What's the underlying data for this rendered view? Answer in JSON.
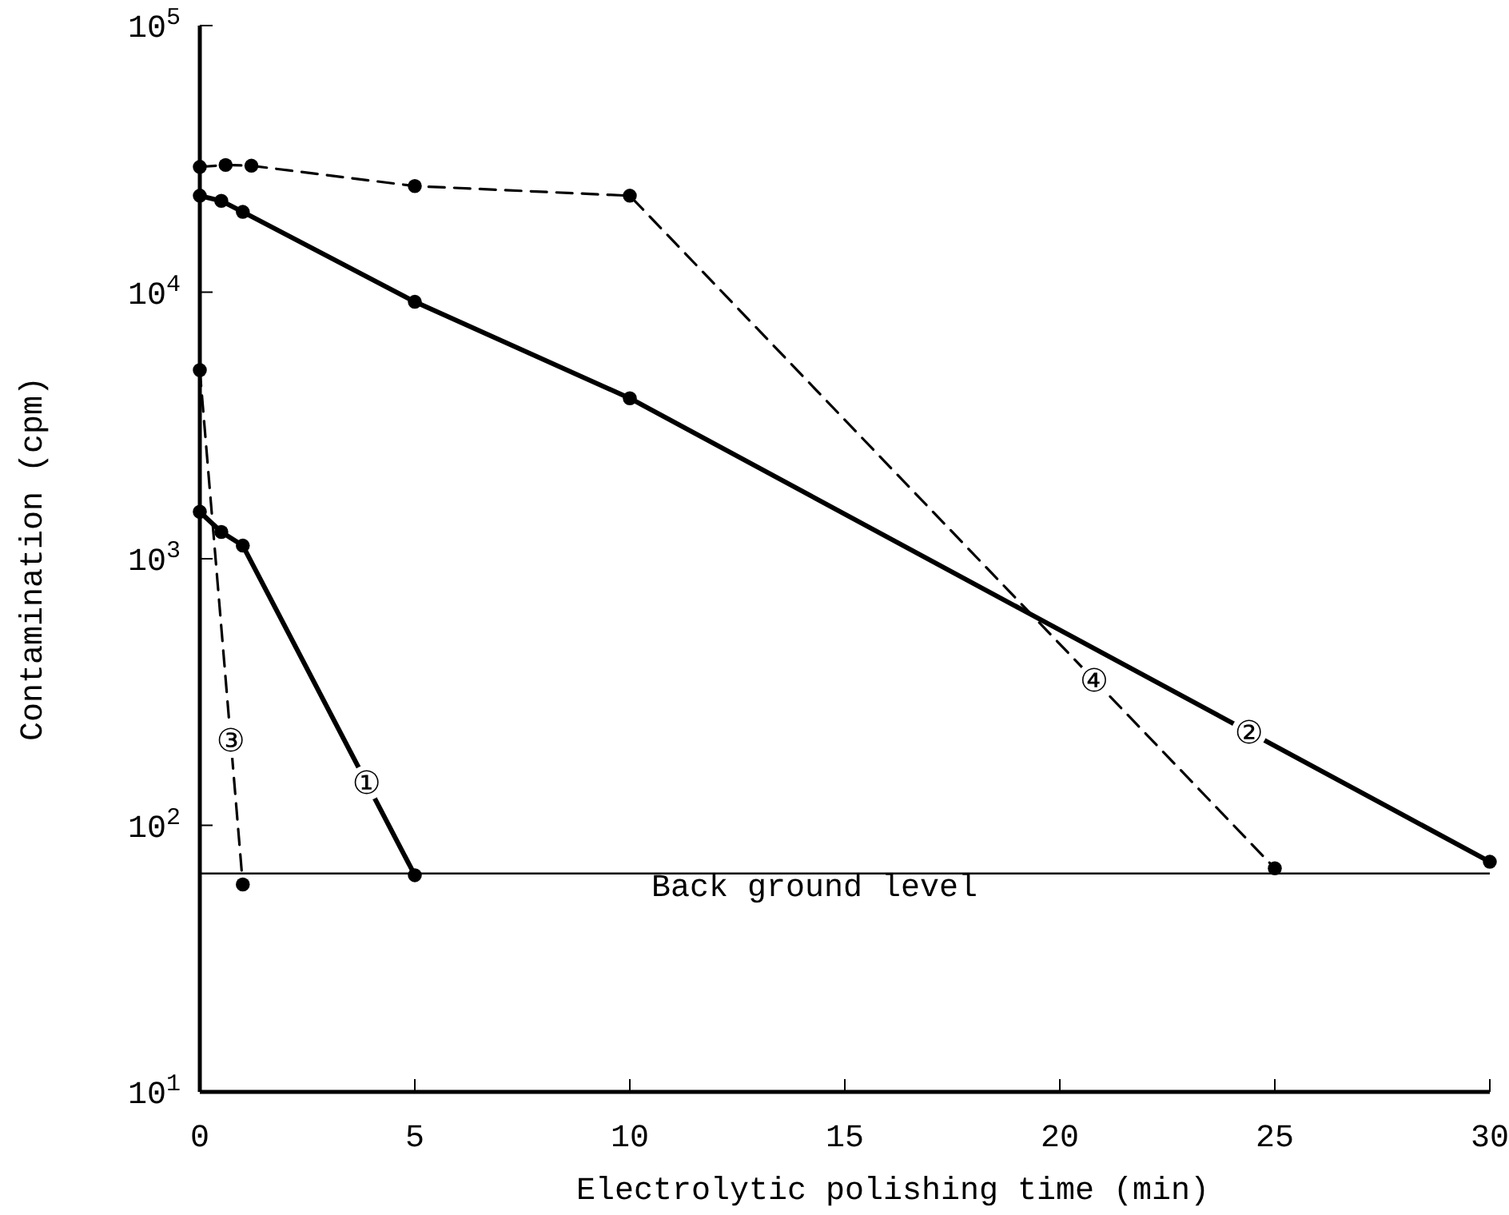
{
  "chart_data": {
    "type": "line",
    "xlabel": "Electrolytic polishing time (min)",
    "ylabel": "Contamination (cpm)",
    "log": "y",
    "xlim": [
      0,
      30
    ],
    "xticks": [
      0,
      5,
      10,
      15,
      20,
      25,
      30
    ],
    "ylim": [
      10,
      100000
    ],
    "yticks": [
      {
        "value": 10,
        "label": "10$^{1}$"
      },
      {
        "value": 100,
        "label": "10$^{2}$"
      },
      {
        "value": 1000,
        "label": "10$^{3}$"
      },
      {
        "value": 10000,
        "label": "10$^{4}$"
      },
      {
        "value": 100000,
        "label": "10$^{5}$"
      }
    ],
    "marker": "circle",
    "series": [
      {
        "name": "①",
        "color": "#000000",
        "line_style": "solid",
        "x": [
          0,
          0.5,
          1,
          5
        ],
        "values": [
          1500,
          1260,
          1120,
          65
        ]
      },
      {
        "name": "②",
        "color": "#000000",
        "line_style": "solid",
        "x": [
          0,
          0.5,
          1,
          5,
          10,
          30
        ],
        "values": [
          23000,
          22000,
          20000,
          9200,
          4000,
          73
        ]
      },
      {
        "name": "③",
        "color": "#000000",
        "line_style": "dashed",
        "x": [
          0,
          1
        ],
        "values": [
          5100,
          60
        ]
      },
      {
        "name": "④",
        "color": "#000000",
        "line_style": "dashed",
        "x": [
          0,
          0.6,
          1.2,
          5,
          10,
          25
        ],
        "values": [
          29500,
          30000,
          29800,
          25000,
          23000,
          69
        ]
      }
    ],
    "ref_lines": [
      {
        "axis": "y",
        "value": 66,
        "label": "Back ground level",
        "color": "#000000"
      }
    ]
  }
}
